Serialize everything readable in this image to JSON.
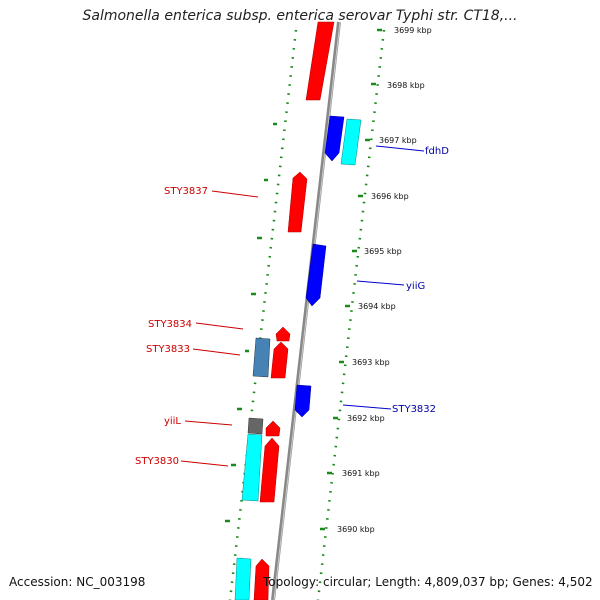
{
  "title": "Salmonella enterica subsp. enterica serovar Typhi str. CT18,...",
  "footer": {
    "accession": "Accession: NC_003198",
    "topology": "Topology: circular; Length: 4,809,037 bp; Genes: 4,502"
  },
  "colors": {
    "forward_gene": "#ff0000",
    "reverse_gene": "#0000ff",
    "cyan_gene": "#00ffff",
    "steel_gene": "#4682b4",
    "gray_gene": "#666666",
    "tick": "#1a8a1a",
    "backbone": "#888888",
    "label_forward": "#cc0000",
    "label_reverse": "#0000aa"
  },
  "scale_ticks": [
    "3699 kbp",
    "3698 kbp",
    "3697 kbp",
    "3696 kbp",
    "3695 kbp",
    "3694 kbp",
    "3693 kbp",
    "3692 kbp",
    "3691 kbp",
    "3690 kbp"
  ],
  "gene_labels": [
    {
      "text": "fdhD",
      "strand": "reverse"
    },
    {
      "text": "STY3837",
      "strand": "forward"
    },
    {
      "text": "yiiG",
      "strand": "reverse"
    },
    {
      "text": "STY3834",
      "strand": "forward"
    },
    {
      "text": "STY3833",
      "strand": "forward"
    },
    {
      "text": "STY3832",
      "strand": "reverse"
    },
    {
      "text": "yiiL",
      "strand": "forward"
    },
    {
      "text": "STY3830",
      "strand": "forward"
    }
  ]
}
